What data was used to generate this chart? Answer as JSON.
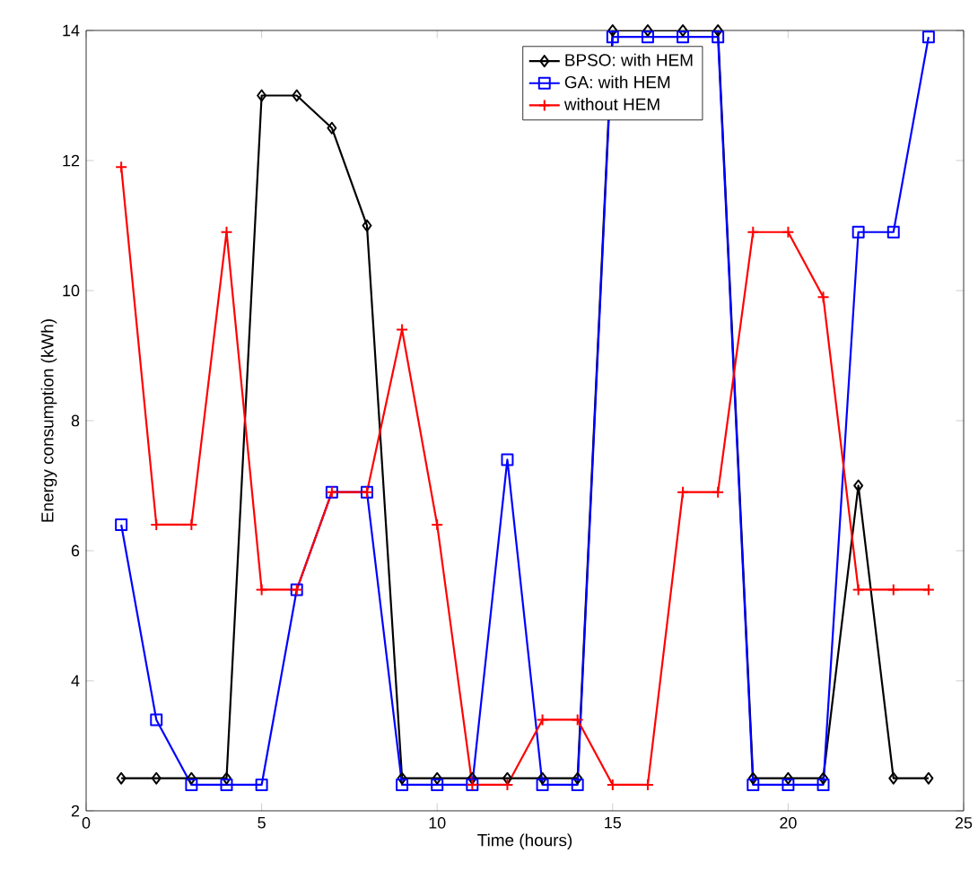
{
  "chart_data": {
    "type": "line",
    "xlabel": "Time (hours)",
    "ylabel": "Energy consumption (kWh)",
    "x": [
      1,
      2,
      3,
      4,
      5,
      6,
      7,
      8,
      9,
      10,
      11,
      12,
      13,
      14,
      15,
      16,
      17,
      18,
      19,
      20,
      21,
      22,
      23,
      24
    ],
    "series": [
      {
        "name": "BPSO: with HEM",
        "color": "#000000",
        "marker": "diamond",
        "values": [
          2.5,
          2.5,
          2.5,
          2.5,
          13.0,
          13.0,
          12.5,
          11.0,
          2.5,
          2.5,
          2.5,
          2.5,
          2.5,
          2.5,
          14.0,
          14.0,
          14.0,
          14.0,
          2.5,
          2.5,
          2.5,
          7.0,
          2.5,
          2.5
        ]
      },
      {
        "name": "GA: with HEM",
        "color": "#0000ff",
        "marker": "square",
        "values": [
          6.4,
          3.4,
          2.4,
          2.4,
          2.4,
          5.4,
          6.9,
          6.9,
          2.4,
          2.4,
          2.4,
          7.4,
          2.4,
          2.4,
          13.9,
          13.9,
          13.9,
          13.9,
          2.4,
          2.4,
          2.4,
          10.9,
          10.9,
          13.9
        ]
      },
      {
        "name": "without HEM",
        "color": "#ff0000",
        "marker": "cross",
        "values": [
          11.9,
          6.4,
          6.4,
          10.9,
          5.4,
          5.4,
          6.9,
          6.9,
          9.4,
          6.4,
          2.4,
          2.4,
          3.4,
          3.4,
          2.4,
          2.4,
          6.9,
          6.9,
          10.9,
          10.9,
          9.9,
          5.4,
          5.4,
          5.4
        ]
      }
    ],
    "xlim": [
      0,
      25
    ],
    "ylim": [
      2,
      14
    ],
    "xticks": [
      0,
      5,
      10,
      15,
      20,
      25
    ],
    "yticks": [
      2,
      4,
      6,
      8,
      10,
      12,
      14
    ],
    "grid": false,
    "legend": "top",
    "line_style": "solid"
  }
}
